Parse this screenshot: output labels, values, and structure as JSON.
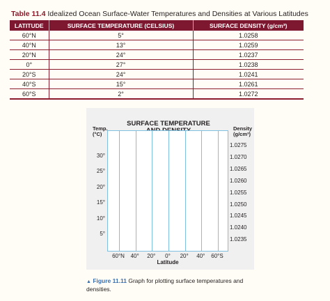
{
  "table_caption": {
    "number": "Table 11.4",
    "title": "Idealized Ocean Surface-Water Temperatures and Densities at Various Latitudes"
  },
  "table": {
    "headers": [
      "LATITUDE",
      "SURFACE TEMPERATURE (CELSIUS)",
      "SURFACE DENSITY (g/cm³)"
    ],
    "rows": [
      [
        "60°N",
        "5°",
        "1.0258"
      ],
      [
        "40°N",
        "13°",
        "1.0259"
      ],
      [
        "20°N",
        "24°",
        "1.0237"
      ],
      [
        "0°",
        "27°",
        "1.0238"
      ],
      [
        "20°S",
        "24°",
        "1.0241"
      ],
      [
        "40°S",
        "15°",
        "1.0261"
      ],
      [
        "60°S",
        "2°",
        "1.0272"
      ]
    ]
  },
  "graph": {
    "title_line1": "SURFACE TEMPERATURE",
    "title_line2": "AND DENSITY",
    "left_axis_label_line1": "Temp.",
    "left_axis_label_line2": "(°C)",
    "right_axis_label_line1": "Density",
    "right_axis_label_line2": "(g/cm³)",
    "left_ticks": [
      "30°",
      "25°",
      "20°",
      "15°",
      "10°",
      "5°"
    ],
    "right_ticks": [
      "1.0275",
      "1.0270",
      "1.0265",
      "1.0260",
      "1.0255",
      "1.0250",
      "1.0245",
      "1.0240",
      "1.0235"
    ],
    "x_ticks": [
      "60°N",
      "40°",
      "20°",
      "0°",
      "20°",
      "40°",
      "60°S"
    ],
    "xlabel": "Latitude"
  },
  "figure_caption": {
    "number": "Figure 11.11",
    "text": "Graph for plotting surface temperatures and densities."
  },
  "colors": {
    "accent": "#7e1830",
    "grid": "#7fbfe0",
    "figure_label": "#3a6fb0"
  }
}
